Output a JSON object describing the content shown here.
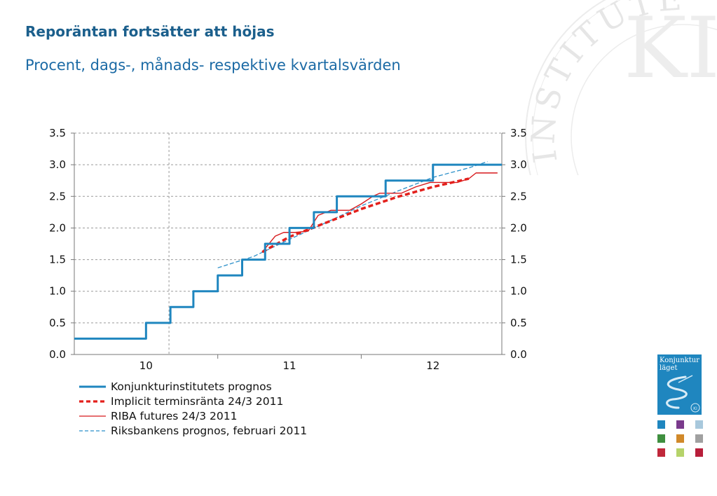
{
  "title": "Reporäntan fortsätter att höjas",
  "subtitle": "Procent, dags-, månads- respektive kvartalsvärden",
  "seal": {
    "text": "INSTITUTET",
    "monogram": "KI"
  },
  "cover": {
    "line1": "Konjunktur",
    "line2": "läget",
    "badge": "KI"
  },
  "thumbnail_colors": [
    "#1f86bf",
    "#7a3a8c",
    "#a8c8dc",
    "#3f8f3f",
    "#d1892a",
    "#a0a0a0",
    "#c0283b",
    "#b5d36a",
    "#b81e3a"
  ],
  "colors": {
    "kix": "#1f86bf",
    "implicit": "#e3201c",
    "riba": "#d7191c",
    "riksbank": "#2a8fc9",
    "title": "#1b5f8c",
    "subtitle": "#1b6aa5"
  },
  "chart_data": {
    "type": "line",
    "x_axis": {
      "categories": [
        "10",
        "11",
        "12"
      ],
      "range": [
        2010.0,
        2012.98
      ]
    },
    "ylim": [
      0,
      3.5
    ],
    "yticks": [
      "0.0",
      "0.5",
      "1.0",
      "1.5",
      "2.0",
      "2.5",
      "3.0",
      "3.5"
    ],
    "y_axis_sides": [
      "left",
      "right"
    ],
    "grid": true,
    "vertical_marker_x": 2010.66,
    "legend_position": "bottom-left",
    "series": [
      {
        "name": "Konjunkturinstitutets prognos",
        "style": "solid-thick",
        "step": true,
        "points": [
          [
            2010.0,
            0.25
          ],
          [
            2010.5,
            0.5
          ],
          [
            2010.67,
            0.75
          ],
          [
            2010.83,
            1.0
          ],
          [
            2011.0,
            1.25
          ],
          [
            2011.17,
            1.5
          ],
          [
            2011.33,
            1.75
          ],
          [
            2011.5,
            2.0
          ],
          [
            2011.67,
            2.25
          ],
          [
            2011.83,
            2.5
          ],
          [
            2012.17,
            2.75
          ],
          [
            2012.5,
            3.0
          ],
          [
            2012.98,
            3.0
          ]
        ]
      },
      {
        "name": "Implicit terminsränta 24/3 2011",
        "style": "dashed-thick",
        "points": [
          [
            2011.31,
            1.62
          ],
          [
            2011.5,
            1.86
          ],
          [
            2011.75,
            2.08
          ],
          [
            2012.0,
            2.3
          ],
          [
            2012.25,
            2.49
          ],
          [
            2012.5,
            2.65
          ],
          [
            2012.75,
            2.78
          ]
        ]
      },
      {
        "name": "RIBA futures 24/3 2011",
        "style": "solid-thin",
        "points": [
          [
            2011.31,
            1.62
          ],
          [
            2011.4,
            1.87
          ],
          [
            2011.46,
            1.93
          ],
          [
            2011.54,
            1.93
          ],
          [
            2011.63,
            1.95
          ],
          [
            2011.7,
            2.2
          ],
          [
            2011.79,
            2.28
          ],
          [
            2011.92,
            2.28
          ],
          [
            2012.0,
            2.38
          ],
          [
            2012.08,
            2.5
          ],
          [
            2012.13,
            2.55
          ],
          [
            2012.28,
            2.55
          ],
          [
            2012.38,
            2.65
          ],
          [
            2012.48,
            2.72
          ],
          [
            2012.67,
            2.72
          ],
          [
            2012.75,
            2.78
          ],
          [
            2012.8,
            2.87
          ],
          [
            2012.95,
            2.87
          ]
        ]
      },
      {
        "name": "Riksbankens prognos, februari 2011",
        "style": "dashed-thin",
        "points": [
          [
            2011.0,
            1.37
          ],
          [
            2011.25,
            1.55
          ],
          [
            2011.5,
            1.82
          ],
          [
            2011.75,
            2.08
          ],
          [
            2012.0,
            2.35
          ],
          [
            2012.25,
            2.58
          ],
          [
            2012.5,
            2.8
          ],
          [
            2012.75,
            2.95
          ],
          [
            2012.88,
            3.05
          ]
        ]
      }
    ]
  }
}
